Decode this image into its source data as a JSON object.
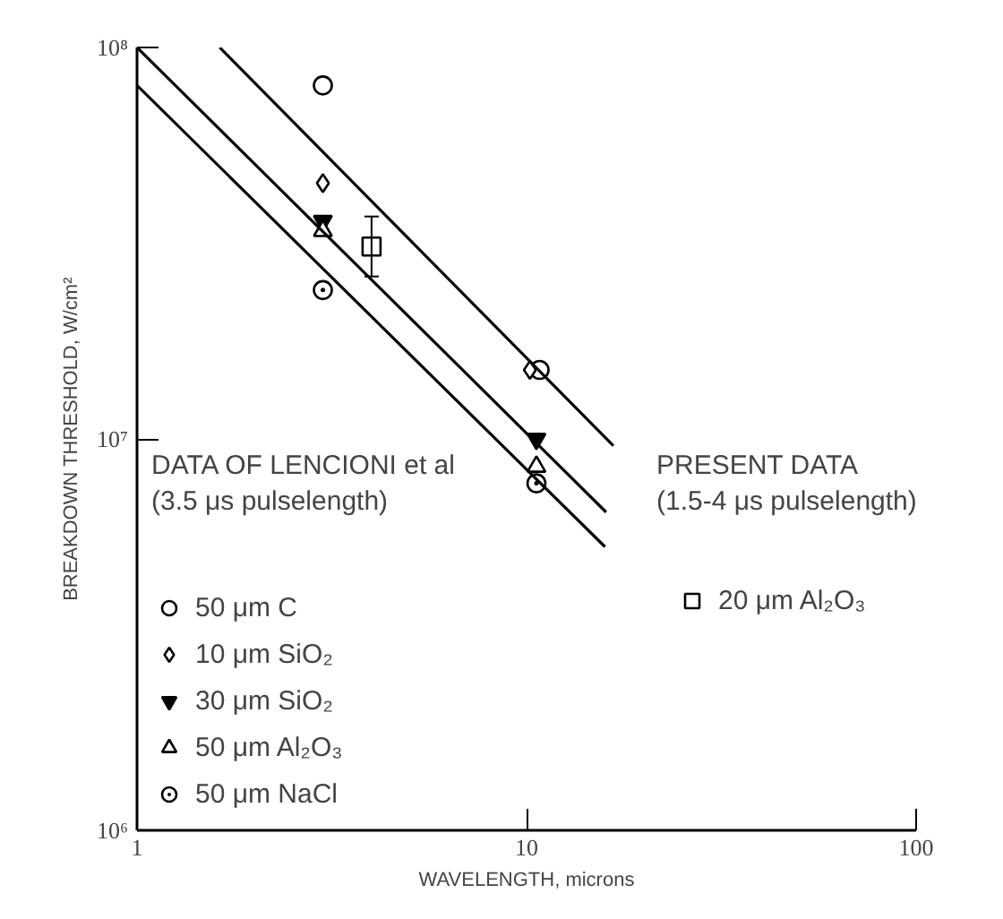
{
  "chart_data": {
    "type": "scatter",
    "xlabel": "WAVELENGTH, microns",
    "ylabel": "BREAKDOWN THRESHOLD, W/cm²",
    "log": "xy",
    "xlim": [
      1,
      100
    ],
    "ylim": [
      1000000,
      100000000
    ],
    "xticks": [
      1,
      10,
      100
    ],
    "yticks": [
      {
        "value": 1000000,
        "label": "10⁶"
      },
      {
        "value": 10000000,
        "label": "10⁷"
      },
      {
        "value": 100000000,
        "label": "10⁸"
      }
    ],
    "grid": false,
    "legend": "bottom left",
    "annotations": [
      "DATA OF LENCIONI et al",
      "(3.5 μs pulselength)",
      "PRESENT DATA",
      "(1.5-4 μs pulselength)"
    ],
    "series": [
      {
        "name": "50 μm C",
        "color": "#000000",
        "marker": "circle",
        "x": [
          3,
          10.8
        ],
        "values": [
          80000000,
          15000000
        ]
      },
      {
        "name": "10 μm SiO₂",
        "color": "#000000",
        "marker": "diamond",
        "x": [
          3,
          10.2
        ],
        "values": [
          45000000,
          15000000
        ]
      },
      {
        "name": "30 μm SiO₂",
        "color": "#000000",
        "marker": "triangle",
        "x": [
          3,
          10.6
        ],
        "values": [
          36000000,
          10000000
        ]
      },
      {
        "name": "50 μm Al₂O₃",
        "color": "#000000",
        "marker": "triangle",
        "x": [
          3,
          10.6
        ],
        "values": [
          34000000,
          8500000
        ]
      },
      {
        "name": "50 μm NaCl",
        "color": "#000000",
        "marker": "circle_dot",
        "x": [
          3,
          10.6
        ],
        "values": [
          24000000,
          7700000
        ]
      },
      {
        "name": "20 μm Al₂O₃",
        "color": "#000000",
        "marker": "square",
        "x": [
          4
        ],
        "values": [
          31000000
        ],
        "errors": [
          [
            26000000,
            37000000
          ]
        ]
      },
      {
        "type": "line",
        "color": "#000000",
        "line_style": "solid",
        "x": [
          1.63,
          16.7
        ],
        "values": [
          100000000,
          9600000
        ]
      },
      {
        "type": "line",
        "color": "#000000",
        "line_style": "solid",
        "x": [
          1,
          16
        ],
        "values": [
          100000000,
          6500000
        ]
      },
      {
        "type": "line",
        "color": "#000000",
        "line_style": "solid",
        "x": [
          1,
          15.9
        ],
        "values": [
          80000000,
          5300000
        ]
      }
    ]
  }
}
